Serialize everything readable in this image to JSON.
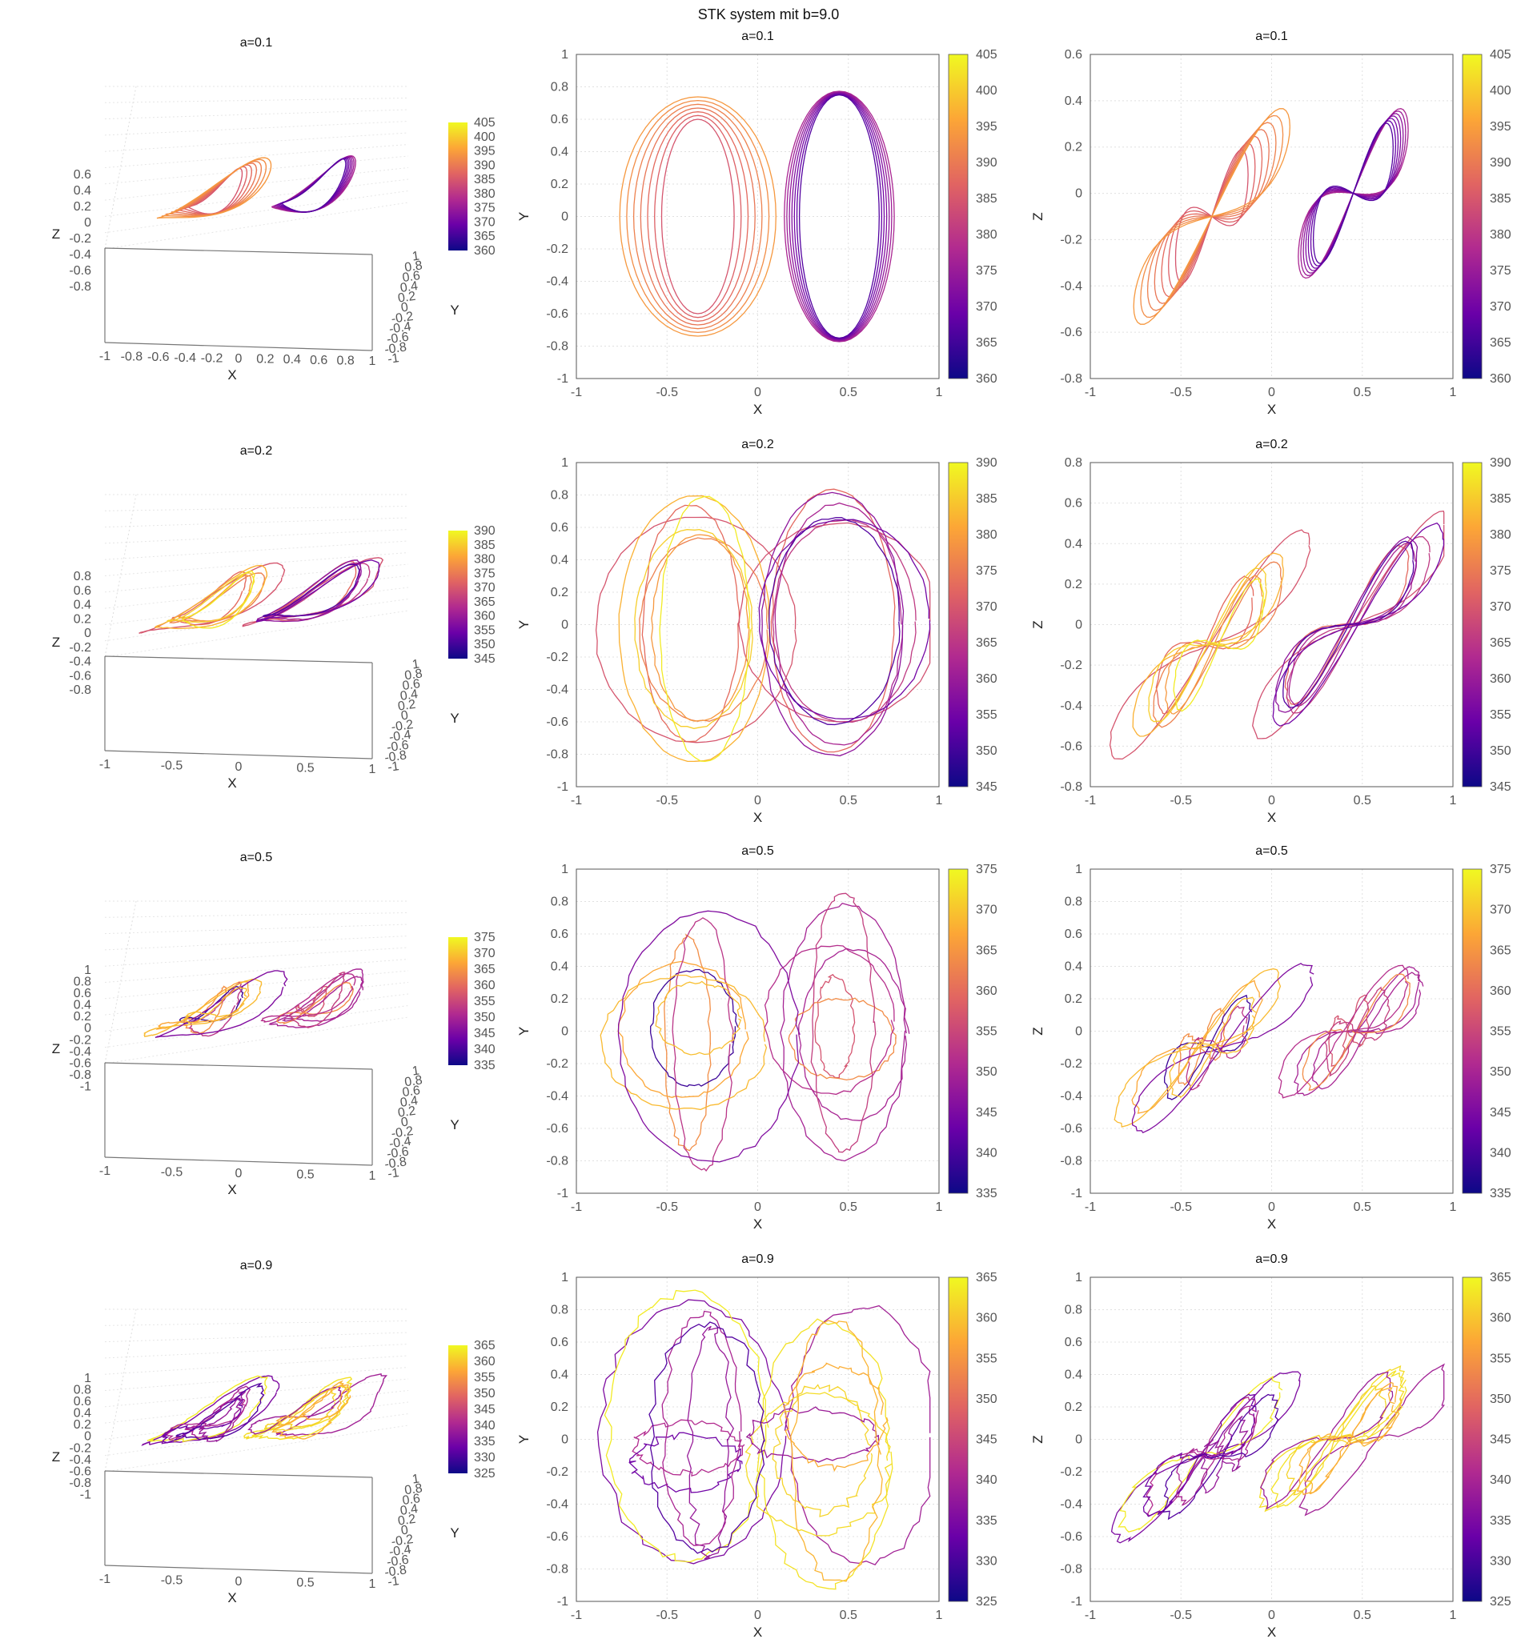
{
  "figure_title": "STK system mit b=9.0",
  "colormap": [
    "#0d0887",
    "#6a00a8",
    "#b12a90",
    "#e16462",
    "#fca636",
    "#f0f921"
  ],
  "chart_data": {
    "type": "line",
    "title": "STK system mit b=9.0",
    "columns": [
      "3d-perspective",
      "xy-projection",
      "xz-projection"
    ],
    "rows": [
      {
        "title": "a=0.1",
        "cbar_ticks": [
          "360",
          "365",
          "370",
          "375",
          "380",
          "385",
          "390",
          "395",
          "400",
          "405"
        ],
        "crange": [
          360,
          405
        ],
        "attractor": "tight",
        "nloops": 14
      },
      {
        "title": "a=0.2",
        "cbar_ticks": [
          "345",
          "350",
          "355",
          "360",
          "365",
          "370",
          "375",
          "380",
          "385",
          "390"
        ],
        "crange": [
          345,
          390
        ],
        "attractor": "medium",
        "nloops": 14
      },
      {
        "title": "a=0.5",
        "cbar_ticks": [
          "335",
          "340",
          "345",
          "350",
          "355",
          "360",
          "365",
          "370",
          "375"
        ],
        "crange": [
          335,
          375
        ],
        "attractor": "chaotic",
        "nloops": 13
      },
      {
        "title": "a=0.9",
        "cbar_ticks": [
          "325",
          "330",
          "335",
          "340",
          "345",
          "350",
          "355",
          "360",
          "365"
        ],
        "crange": [
          325,
          365
        ],
        "attractor": "wild",
        "nloops": 14
      }
    ],
    "panel2d_xy": {
      "xlabel": "X",
      "ylabel": "Y",
      "xlim": [
        -1,
        1
      ],
      "ylim": [
        -1,
        1
      ],
      "xticks": [
        "-1",
        "-0.5",
        "0",
        "0.5",
        "1"
      ],
      "yticks": [
        "-1",
        "-0.8",
        "-0.6",
        "-0.4",
        "-0.2",
        "0",
        "0.2",
        "0.4",
        "0.6",
        "0.8",
        "1"
      ],
      "grid": true
    },
    "panel2d_xz": {
      "xlabel": "X",
      "ylabel": "Z",
      "xlim": [
        -1,
        1
      ],
      "xticks": [
        "-1",
        "-0.5",
        "0",
        "0.5",
        "1"
      ],
      "rows_ylim": [
        [
          -0.8,
          0.6
        ],
        [
          -0.8,
          0.8
        ],
        [
          -1,
          1
        ],
        [
          -1,
          1
        ]
      ],
      "rows_yticks": [
        [
          "-0.8",
          "-0.6",
          "-0.4",
          "-0.2",
          "0",
          "0.2",
          "0.4",
          "0.6"
        ],
        [
          "-0.8",
          "-0.6",
          "-0.4",
          "-0.2",
          "0",
          "0.2",
          "0.4",
          "0.6",
          "0.8"
        ],
        [
          "-1",
          "-0.8",
          "-0.6",
          "-0.4",
          "-0.2",
          "0",
          "0.2",
          "0.4",
          "0.6",
          "0.8",
          "1"
        ],
        [
          "-1",
          "-0.8",
          "-0.6",
          "-0.4",
          "-0.2",
          "0",
          "0.2",
          "0.4",
          "0.6",
          "0.8",
          "1"
        ]
      ],
      "grid": true
    },
    "panel3d": {
      "xlabel": "X",
      "ylabel": "Y",
      "zlabel": "Z",
      "rows_xticks": [
        [
          "-1",
          "-0.8",
          "-0.6",
          "-0.4",
          "-0.2",
          "0",
          "0.2",
          "0.4",
          "0.6",
          "0.8",
          "1"
        ],
        [
          "-1",
          "-0.5",
          "0",
          "0.5",
          "1"
        ],
        [
          "-1",
          "-0.5",
          "0",
          "0.5",
          "1"
        ],
        [
          "-1",
          "-0.5",
          "0",
          "0.5",
          "1"
        ]
      ],
      "yticks": [
        "1",
        "0.8",
        "0.6",
        "0.4",
        "0.2",
        "0",
        "-0.2",
        "-0.4",
        "-0.6",
        "-0.8",
        "-1"
      ],
      "rows_zticks": [
        [
          "0.6",
          "0.4",
          "0.2",
          "0",
          "-0.2",
          "-0.4",
          "-0.6",
          "-0.8"
        ],
        [
          "0.8",
          "0.6",
          "0.4",
          "0.2",
          "0",
          "-0.2",
          "-0.4",
          "-0.6",
          "-0.8"
        ],
        [
          "1",
          "0.8",
          "0.6",
          "0.4",
          "0.2",
          "0",
          "-0.2",
          "-0.4",
          "-0.6",
          "-0.8",
          "-1"
        ],
        [
          "1",
          "0.8",
          "0.6",
          "0.4",
          "0.2",
          "0",
          "-0.2",
          "-0.4",
          "-0.6",
          "-0.8",
          "-1"
        ]
      ]
    }
  }
}
